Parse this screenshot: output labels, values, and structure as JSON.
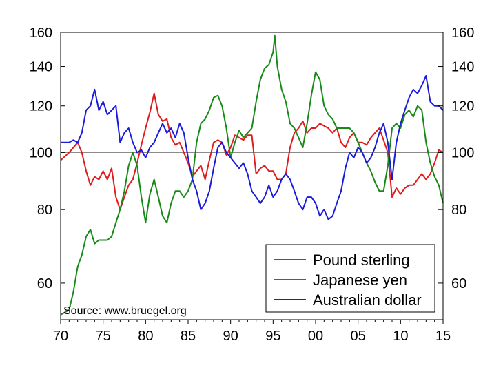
{
  "chart_data": {
    "type": "line",
    "title": "",
    "xlabel": "",
    "ylabel": "",
    "x_range": [
      1970,
      2015
    ],
    "y_scale": "log",
    "ylim": [
      52,
      160
    ],
    "reference_line": 100,
    "x_ticks": [
      {
        "value": 1970,
        "label": "70"
      },
      {
        "value": 1975,
        "label": "75"
      },
      {
        "value": 1980,
        "label": "80"
      },
      {
        "value": 1985,
        "label": "85"
      },
      {
        "value": 1990,
        "label": "90"
      },
      {
        "value": 1995,
        "label": "95"
      },
      {
        "value": 2000,
        "label": "00"
      },
      {
        "value": 2005,
        "label": "05"
      },
      {
        "value": 2010,
        "label": "10"
      },
      {
        "value": 2015,
        "label": "15"
      }
    ],
    "y_ticks": [
      {
        "value": 60,
        "label": "60"
      },
      {
        "value": 80,
        "label": "80"
      },
      {
        "value": 100,
        "label": "100"
      },
      {
        "value": 120,
        "label": "120"
      },
      {
        "value": 140,
        "label": "140"
      },
      {
        "value": 160,
        "label": "160"
      }
    ],
    "legend_position": "bottom-right",
    "source_note": "Source: www.bruegel.org",
    "series": [
      {
        "name": "Pound sterling",
        "color": "#e01b1b",
        "points": [
          [
            1970.0,
            97
          ],
          [
            1971.0,
            100
          ],
          [
            1972.0,
            104
          ],
          [
            1972.5,
            100
          ],
          [
            1973.0,
            93
          ],
          [
            1973.5,
            88
          ],
          [
            1974.0,
            91
          ],
          [
            1974.5,
            90
          ],
          [
            1975.0,
            93
          ],
          [
            1975.5,
            90
          ],
          [
            1976.0,
            94
          ],
          [
            1976.5,
            84
          ],
          [
            1977.0,
            80
          ],
          [
            1977.5,
            84
          ],
          [
            1978.0,
            88
          ],
          [
            1978.5,
            90
          ],
          [
            1979.0,
            96
          ],
          [
            1979.5,
            103
          ],
          [
            1980.0,
            110
          ],
          [
            1980.5,
            117
          ],
          [
            1981.0,
            126
          ],
          [
            1981.5,
            116
          ],
          [
            1982.0,
            113
          ],
          [
            1982.5,
            114
          ],
          [
            1983.0,
            106
          ],
          [
            1983.5,
            103
          ],
          [
            1984.0,
            104
          ],
          [
            1984.5,
            100
          ],
          [
            1985.0,
            96
          ],
          [
            1985.5,
            91
          ],
          [
            1986.0,
            93
          ],
          [
            1986.5,
            95
          ],
          [
            1987.0,
            90
          ],
          [
            1987.5,
            97
          ],
          [
            1988.0,
            104
          ],
          [
            1988.5,
            105
          ],
          [
            1989.0,
            104
          ],
          [
            1989.5,
            99
          ],
          [
            1990.0,
            102
          ],
          [
            1990.5,
            107
          ],
          [
            1991.0,
            106
          ],
          [
            1991.5,
            105
          ],
          [
            1992.0,
            107
          ],
          [
            1992.5,
            107
          ],
          [
            1993.0,
            92
          ],
          [
            1993.5,
            94
          ],
          [
            1994.0,
            95
          ],
          [
            1994.5,
            93
          ],
          [
            1995.0,
            93
          ],
          [
            1995.5,
            90
          ],
          [
            1996.0,
            90
          ],
          [
            1996.5,
            92
          ],
          [
            1997.0,
            102
          ],
          [
            1997.5,
            108
          ],
          [
            1998.0,
            110
          ],
          [
            1998.5,
            113
          ],
          [
            1999.0,
            108
          ],
          [
            1999.5,
            110
          ],
          [
            2000.0,
            110
          ],
          [
            2000.5,
            112
          ],
          [
            2001.0,
            111
          ],
          [
            2001.5,
            110
          ],
          [
            2002.0,
            108
          ],
          [
            2002.5,
            110
          ],
          [
            2003.0,
            104
          ],
          [
            2003.5,
            102
          ],
          [
            2004.0,
            106
          ],
          [
            2004.5,
            108
          ],
          [
            2005.0,
            104
          ],
          [
            2005.5,
            104
          ],
          [
            2006.0,
            103
          ],
          [
            2006.5,
            106
          ],
          [
            2007.0,
            108
          ],
          [
            2007.5,
            110
          ],
          [
            2008.0,
            105
          ],
          [
            2008.5,
            100
          ],
          [
            2009.0,
            84
          ],
          [
            2009.5,
            87
          ],
          [
            2010.0,
            85
          ],
          [
            2010.5,
            87
          ],
          [
            2011.0,
            88
          ],
          [
            2011.5,
            88
          ],
          [
            2012.0,
            90
          ],
          [
            2012.5,
            92
          ],
          [
            2013.0,
            90
          ],
          [
            2013.5,
            92
          ],
          [
            2014.0,
            96
          ],
          [
            2014.5,
            101
          ],
          [
            2015.0,
            100
          ]
        ]
      },
      {
        "name": "Japanese yen",
        "color": "#188a18",
        "points": [
          [
            1970.0,
            53
          ],
          [
            1971.0,
            54
          ],
          [
            1971.5,
            58
          ],
          [
            1972.0,
            64
          ],
          [
            1972.5,
            67
          ],
          [
            1973.0,
            72
          ],
          [
            1973.5,
            74
          ],
          [
            1974.0,
            70
          ],
          [
            1974.5,
            71
          ],
          [
            1975.0,
            71
          ],
          [
            1975.5,
            71
          ],
          [
            1976.0,
            72
          ],
          [
            1976.5,
            76
          ],
          [
            1977.0,
            80
          ],
          [
            1977.5,
            86
          ],
          [
            1978.0,
            95
          ],
          [
            1978.5,
            100
          ],
          [
            1979.0,
            95
          ],
          [
            1979.5,
            84
          ],
          [
            1980.0,
            76
          ],
          [
            1980.5,
            85
          ],
          [
            1981.0,
            90
          ],
          [
            1981.5,
            84
          ],
          [
            1982.0,
            78
          ],
          [
            1982.5,
            76
          ],
          [
            1983.0,
            82
          ],
          [
            1983.5,
            86
          ],
          [
            1984.0,
            86
          ],
          [
            1984.5,
            84
          ],
          [
            1985.0,
            86
          ],
          [
            1985.5,
            90
          ],
          [
            1986.0,
            104
          ],
          [
            1986.5,
            112
          ],
          [
            1987.0,
            114
          ],
          [
            1987.5,
            118
          ],
          [
            1988.0,
            124
          ],
          [
            1988.5,
            125
          ],
          [
            1989.0,
            120
          ],
          [
            1989.5,
            110
          ],
          [
            1990.0,
            98
          ],
          [
            1990.5,
            104
          ],
          [
            1991.0,
            109
          ],
          [
            1991.5,
            106
          ],
          [
            1992.0,
            108
          ],
          [
            1992.5,
            110
          ],
          [
            1993.0,
            122
          ],
          [
            1993.5,
            133
          ],
          [
            1994.0,
            139
          ],
          [
            1994.5,
            141
          ],
          [
            1995.0,
            148
          ],
          [
            1995.2,
            158
          ],
          [
            1995.5,
            140
          ],
          [
            1996.0,
            128
          ],
          [
            1996.5,
            122
          ],
          [
            1997.0,
            112
          ],
          [
            1997.5,
            110
          ],
          [
            1998.0,
            106
          ],
          [
            1998.5,
            102
          ],
          [
            1999.0,
            112
          ],
          [
            1999.5,
            125
          ],
          [
            2000.0,
            137
          ],
          [
            2000.5,
            133
          ],
          [
            2001.0,
            120
          ],
          [
            2001.5,
            116
          ],
          [
            2002.0,
            114
          ],
          [
            2002.5,
            110
          ],
          [
            2003.0,
            110
          ],
          [
            2003.5,
            110
          ],
          [
            2004.0,
            110
          ],
          [
            2004.5,
            108
          ],
          [
            2005.0,
            104
          ],
          [
            2005.5,
            100
          ],
          [
            2006.0,
            96
          ],
          [
            2006.5,
            93
          ],
          [
            2007.0,
            89
          ],
          [
            2007.5,
            86
          ],
          [
            2008.0,
            86
          ],
          [
            2008.5,
            95
          ],
          [
            2009.0,
            110
          ],
          [
            2009.5,
            112
          ],
          [
            2010.0,
            110
          ],
          [
            2010.5,
            116
          ],
          [
            2011.0,
            118
          ],
          [
            2011.5,
            115
          ],
          [
            2012.0,
            120
          ],
          [
            2012.5,
            118
          ],
          [
            2013.0,
            104
          ],
          [
            2013.5,
            96
          ],
          [
            2014.0,
            91
          ],
          [
            2014.5,
            88
          ],
          [
            2015.0,
            82
          ]
        ]
      },
      {
        "name": "Australian dollar",
        "color": "#1a1adb",
        "points": [
          [
            1970.0,
            104
          ],
          [
            1971.0,
            104
          ],
          [
            1971.5,
            105
          ],
          [
            1972.0,
            104
          ],
          [
            1972.5,
            108
          ],
          [
            1973.0,
            118
          ],
          [
            1973.5,
            120
          ],
          [
            1974.0,
            128
          ],
          [
            1974.5,
            118
          ],
          [
            1975.0,
            122
          ],
          [
            1975.5,
            116
          ],
          [
            1976.0,
            118
          ],
          [
            1976.5,
            120
          ],
          [
            1977.0,
            104
          ],
          [
            1977.5,
            108
          ],
          [
            1978.0,
            110
          ],
          [
            1978.5,
            104
          ],
          [
            1979.0,
            100
          ],
          [
            1979.5,
            101
          ],
          [
            1980.0,
            98
          ],
          [
            1980.5,
            102
          ],
          [
            1981.0,
            104
          ],
          [
            1981.5,
            108
          ],
          [
            1982.0,
            112
          ],
          [
            1982.5,
            108
          ],
          [
            1983.0,
            110
          ],
          [
            1983.5,
            106
          ],
          [
            1984.0,
            112
          ],
          [
            1984.5,
            108
          ],
          [
            1985.0,
            98
          ],
          [
            1985.5,
            90
          ],
          [
            1986.0,
            86
          ],
          [
            1986.5,
            80
          ],
          [
            1987.0,
            82
          ],
          [
            1987.5,
            86
          ],
          [
            1988.0,
            94
          ],
          [
            1988.5,
            102
          ],
          [
            1989.0,
            104
          ],
          [
            1989.5,
            100
          ],
          [
            1990.0,
            98
          ],
          [
            1990.5,
            96
          ],
          [
            1991.0,
            94
          ],
          [
            1991.5,
            96
          ],
          [
            1992.0,
            92
          ],
          [
            1992.5,
            86
          ],
          [
            1993.0,
            84
          ],
          [
            1993.5,
            82
          ],
          [
            1994.0,
            84
          ],
          [
            1994.5,
            88
          ],
          [
            1995.0,
            84
          ],
          [
            1995.5,
            86
          ],
          [
            1996.0,
            90
          ],
          [
            1996.5,
            92
          ],
          [
            1997.0,
            90
          ],
          [
            1997.5,
            86
          ],
          [
            1998.0,
            82
          ],
          [
            1998.5,
            80
          ],
          [
            1999.0,
            84
          ],
          [
            1999.5,
            84
          ],
          [
            2000.0,
            82
          ],
          [
            2000.5,
            78
          ],
          [
            2001.0,
            80
          ],
          [
            2001.5,
            77
          ],
          [
            2002.0,
            78
          ],
          [
            2002.5,
            82
          ],
          [
            2003.0,
            86
          ],
          [
            2003.5,
            94
          ],
          [
            2004.0,
            100
          ],
          [
            2004.5,
            98
          ],
          [
            2005.0,
            102
          ],
          [
            2005.5,
            100
          ],
          [
            2006.0,
            96
          ],
          [
            2006.5,
            98
          ],
          [
            2007.0,
            102
          ],
          [
            2007.5,
            108
          ],
          [
            2008.0,
            112
          ],
          [
            2008.5,
            104
          ],
          [
            2009.0,
            90
          ],
          [
            2009.5,
            104
          ],
          [
            2010.0,
            112
          ],
          [
            2010.5,
            118
          ],
          [
            2011.0,
            124
          ],
          [
            2011.5,
            128
          ],
          [
            2012.0,
            126
          ],
          [
            2012.5,
            130
          ],
          [
            2013.0,
            135
          ],
          [
            2013.5,
            122
          ],
          [
            2014.0,
            120
          ],
          [
            2014.5,
            120
          ],
          [
            2015.0,
            118
          ]
        ]
      }
    ]
  }
}
